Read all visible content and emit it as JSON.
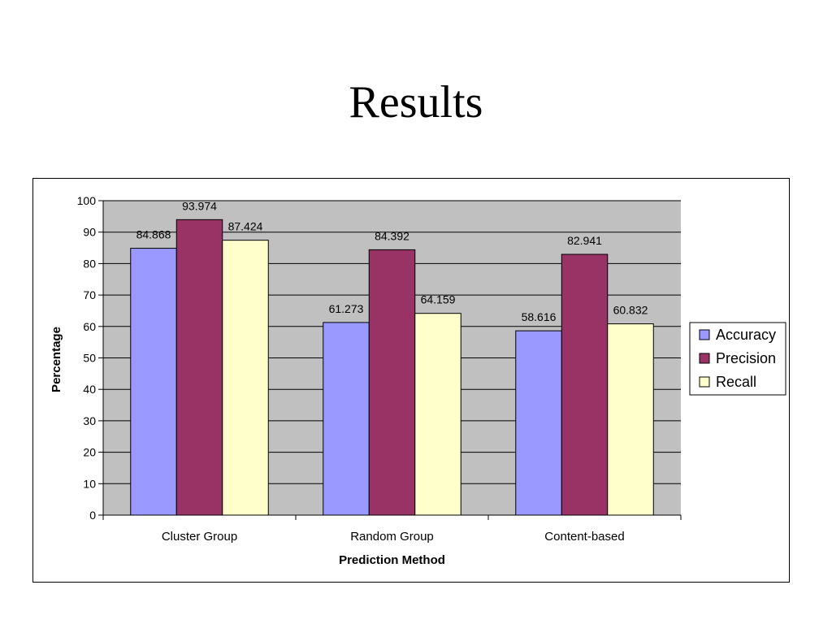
{
  "slide": {
    "title": "Results"
  },
  "chart_data": {
    "type": "bar",
    "title": "",
    "xlabel": "Prediction Method",
    "ylabel": "Percentage",
    "ylim": [
      0,
      100
    ],
    "yticks": [
      0,
      10,
      20,
      30,
      40,
      50,
      60,
      70,
      80,
      90,
      100
    ],
    "grid": true,
    "legend_position": "right",
    "categories": [
      "Cluster Group",
      "Random Group",
      "Content-based"
    ],
    "series": [
      {
        "name": "Accuracy",
        "values": [
          84.868,
          61.273,
          58.616
        ],
        "labels": [
          "84.868",
          "61.273",
          "58.616"
        ],
        "color": "#9999FF"
      },
      {
        "name": "Precision",
        "values": [
          93.974,
          84.392,
          82.941
        ],
        "labels": [
          "93.974",
          "84.392",
          "82.941"
        ],
        "color": "#993366"
      },
      {
        "name": "Recall",
        "values": [
          87.424,
          64.159,
          60.832
        ],
        "labels": [
          "87.424",
          "64.159",
          "60.832"
        ],
        "color": "#FFFFCC"
      }
    ],
    "plot_background": "#C0C0C0"
  }
}
